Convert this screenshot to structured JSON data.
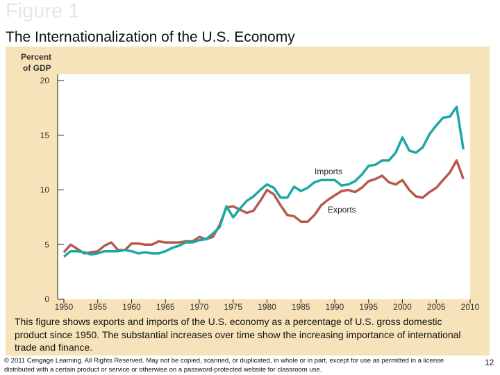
{
  "slide": {
    "figure_label": "Figure 1",
    "title": "The Internationalization of the U.S. Economy",
    "caption": "This figure shows exports and imports of the U.S. economy as a percentage of U.S. gross domestic product since 1950. The substantial increases over time show the increasing importance of international trade and finance.",
    "footer": "© 2011 Cengage Learning. All Rights Reserved. May not be copied, scanned, or duplicated, in whole or in part, except for use as permitted in a license distributed with a certain product or service or otherwise on a password-protected website for classroom use.",
    "page_number": "12"
  },
  "chart_data": {
    "type": "line",
    "ylabel_line1": "Percent",
    "ylabel_line2": "of GDP",
    "xlim": [
      1950,
      2010
    ],
    "ylim": [
      0,
      20
    ],
    "xticks": [
      "1950",
      "1955",
      "1960",
      "1965",
      "1970",
      "1975",
      "1980",
      "1985",
      "1990",
      "1995",
      "2000",
      "2005",
      "2010"
    ],
    "yticks": [
      "0",
      "5",
      "10",
      "15",
      "20"
    ],
    "grid": false,
    "x": [
      1950,
      1951,
      1952,
      1953,
      1954,
      1955,
      1956,
      1957,
      1958,
      1959,
      1960,
      1961,
      1962,
      1963,
      1964,
      1965,
      1966,
      1967,
      1968,
      1969,
      1970,
      1971,
      1972,
      1973,
      1974,
      1975,
      1976,
      1977,
      1978,
      1979,
      1980,
      1981,
      1982,
      1983,
      1984,
      1985,
      1986,
      1987,
      1988,
      1989,
      1990,
      1991,
      1992,
      1993,
      1994,
      1995,
      1996,
      1997,
      1998,
      1999,
      2000,
      2001,
      2002,
      2003,
      2004,
      2005,
      2006,
      2007,
      2008,
      2009
    ],
    "series": [
      {
        "name": "Imports",
        "color": "#1aa8a4",
        "values": [
          3.9,
          4.4,
          4.4,
          4.3,
          4.1,
          4.2,
          4.4,
          4.4,
          4.4,
          4.5,
          4.4,
          4.2,
          4.3,
          4.2,
          4.2,
          4.4,
          4.7,
          4.9,
          5.2,
          5.2,
          5.4,
          5.5,
          6.0,
          6.6,
          8.5,
          7.5,
          8.3,
          9.0,
          9.4,
          10.0,
          10.5,
          10.2,
          9.3,
          9.3,
          10.3,
          9.9,
          10.2,
          10.7,
          10.9,
          10.9,
          10.9,
          10.4,
          10.5,
          10.8,
          11.4,
          12.2,
          12.3,
          12.7,
          12.7,
          13.4,
          14.8,
          13.6,
          13.4,
          13.9,
          15.1,
          15.9,
          16.6,
          16.7,
          17.6,
          13.7
        ]
      },
      {
        "name": "Exports",
        "color": "#b55a4c",
        "values": [
          4.3,
          5.0,
          4.6,
          4.2,
          4.3,
          4.4,
          4.9,
          5.2,
          4.5,
          4.5,
          5.1,
          5.1,
          5.0,
          5.0,
          5.3,
          5.2,
          5.2,
          5.2,
          5.3,
          5.3,
          5.7,
          5.5,
          5.7,
          6.8,
          8.4,
          8.5,
          8.2,
          7.9,
          8.1,
          9.0,
          10.0,
          9.6,
          8.6,
          7.7,
          7.6,
          7.1,
          7.1,
          7.7,
          8.6,
          9.1,
          9.5,
          9.9,
          10.0,
          9.8,
          10.2,
          10.8,
          11.0,
          11.3,
          10.7,
          10.5,
          10.9,
          10.0,
          9.4,
          9.3,
          9.8,
          10.2,
          10.9,
          11.6,
          12.7,
          11.0
        ]
      }
    ]
  }
}
